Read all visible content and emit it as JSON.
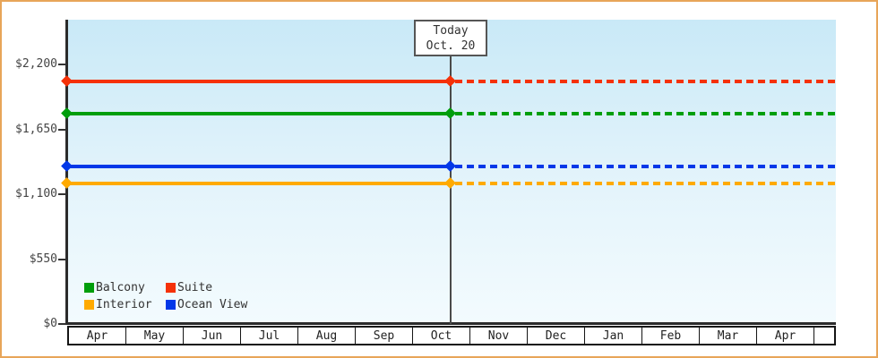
{
  "frame": {
    "border_color": "#E8A559",
    "background": "#FFFFFF",
    "plot_gradient_top": "#C9E9F7",
    "plot_gradient_bottom": "#F3FBFE"
  },
  "chart_data": {
    "type": "line",
    "title": "",
    "xlabel": "",
    "ylabel": "",
    "x_categories": [
      "Apr",
      "May",
      "Jun",
      "Jul",
      "Aug",
      "Sep",
      "Oct",
      "Nov",
      "Dec",
      "Jan",
      "Feb",
      "Mar",
      "Apr"
    ],
    "y_ticks": [
      {
        "label": "$0",
        "value": 0
      },
      {
        "label": "$550",
        "value": 550
      },
      {
        "label": "$1,100",
        "value": 1100
      },
      {
        "label": "$1,650",
        "value": 1650
      },
      {
        "label": "$2,200",
        "value": 2200
      }
    ],
    "ylim": [
      0,
      2580
    ],
    "grid": false,
    "series": [
      {
        "name": "Balcony",
        "color": "#009E0C",
        "value": 1785,
        "line_style": "solid before today, dotted after"
      },
      {
        "name": "Suite",
        "color": "#F53108",
        "value": 2055,
        "line_style": "solid before today, dotted after"
      },
      {
        "name": "Interior",
        "color": "#FFAA00",
        "value": 1190,
        "line_style": "solid before today, dotted after"
      },
      {
        "name": "Ocean View",
        "color": "#0338E8",
        "value": 1335,
        "line_style": "solid before today, dotted after"
      }
    ],
    "today": {
      "line1": "Today",
      "line2": "Oct. 20",
      "x_fraction": 0.499
    },
    "legend": {
      "position": "inside-bottom-left",
      "columns": 2
    }
  }
}
